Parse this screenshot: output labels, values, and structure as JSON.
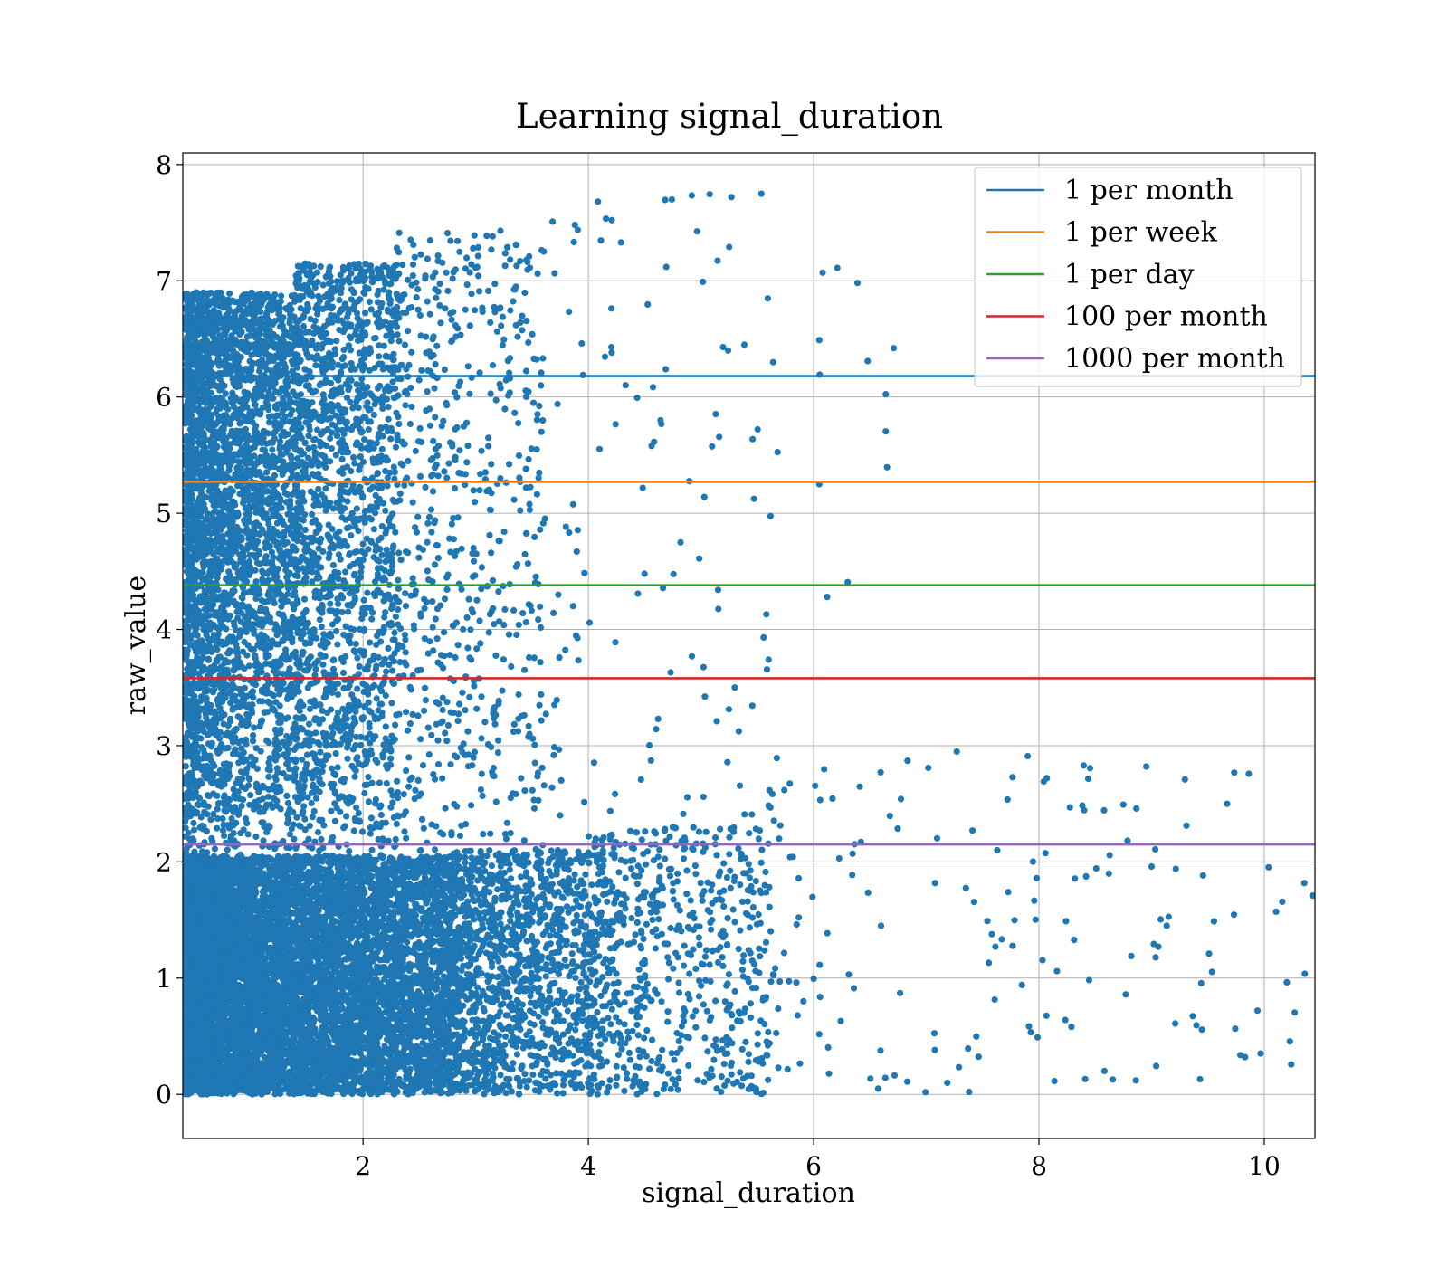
{
  "chart_data": {
    "type": "scatter",
    "title": "Learning signal_duration",
    "xlabel": "signal_duration",
    "ylabel": "raw_value",
    "xlim": [
      0.4,
      10.45
    ],
    "ylim": [
      -0.38,
      8.1
    ],
    "xticks": [
      2,
      4,
      6,
      8,
      10
    ],
    "yticks": [
      0,
      1,
      2,
      3,
      4,
      5,
      6,
      7,
      8
    ],
    "grid": true,
    "legend_position": "upper right",
    "point_color": "#1f77b4",
    "scatter_distribution": [
      {
        "x_range": [
          0.42,
          2.8
        ],
        "y_range": [
          0.0,
          2.05
        ],
        "count": 9000,
        "x_skew": 1.6,
        "y_skew": 1.0
      },
      {
        "x_range": [
          2.8,
          4.0
        ],
        "y_range": [
          0.0,
          2.1
        ],
        "count": 1300,
        "x_skew": 1.3,
        "y_skew": 1.0
      },
      {
        "x_range": [
          4.0,
          5.6
        ],
        "y_range": [
          0.0,
          2.3
        ],
        "count": 700,
        "x_skew": 1.4,
        "y_skew": 1.0
      },
      {
        "x_range": [
          5.6,
          10.4
        ],
        "y_range": [
          0.0,
          2.9
        ],
        "count": 160,
        "x_skew": 1.6,
        "y_skew": 1.0
      },
      {
        "x_range": [
          0.42,
          1.4
        ],
        "y_range": [
          2.0,
          6.9
        ],
        "count": 3600,
        "x_skew": 1.4,
        "y_skew": 0.7
      },
      {
        "x_range": [
          1.4,
          2.3
        ],
        "y_range": [
          2.0,
          7.15
        ],
        "count": 1700,
        "x_skew": 1.3,
        "y_skew": 0.8
      },
      {
        "x_range": [
          2.3,
          3.6
        ],
        "y_range": [
          2.0,
          7.45
        ],
        "count": 650,
        "x_skew": 1.3,
        "y_skew": 0.8
      },
      {
        "x_range": [
          3.6,
          5.6
        ],
        "y_range": [
          2.2,
          7.75
        ],
        "count": 110,
        "x_skew": 1.2,
        "y_skew": 0.9
      },
      {
        "x_range": [
          5.6,
          6.8
        ],
        "y_range": [
          4.0,
          7.2
        ],
        "count": 8,
        "x_skew": 1.0,
        "y_skew": 1.0
      }
    ],
    "scatter_points": [
      {
        "x": 5.27,
        "y": 7.72
      },
      {
        "x": 3.88,
        "y": 7.48
      },
      {
        "x": 3.22,
        "y": 7.43
      },
      {
        "x": 2.75,
        "y": 7.41
      },
      {
        "x": 4.29,
        "y": 7.33
      },
      {
        "x": 5.25,
        "y": 7.29
      },
      {
        "x": 6.21,
        "y": 7.11
      },
      {
        "x": 6.08,
        "y": 7.07
      },
      {
        "x": 6.71,
        "y": 6.42
      },
      {
        "x": 6.48,
        "y": 6.31
      },
      {
        "x": 5.64,
        "y": 6.3
      },
      {
        "x": 6.05,
        "y": 6.49
      },
      {
        "x": 6.05,
        "y": 5.25
      },
      {
        "x": 5.03,
        "y": 5.14
      },
      {
        "x": 6.12,
        "y": 4.28
      },
      {
        "x": 5.58,
        "y": 4.13
      },
      {
        "x": 5.6,
        "y": 3.74
      },
      {
        "x": 5.3,
        "y": 3.5
      },
      {
        "x": 5.14,
        "y": 3.21
      },
      {
        "x": 4.73,
        "y": 3.63
      },
      {
        "x": 7.27,
        "y": 2.95
      },
      {
        "x": 7.9,
        "y": 2.91
      },
      {
        "x": 8.07,
        "y": 2.72
      },
      {
        "x": 9.67,
        "y": 2.5
      },
      {
        "x": 10.43,
        "y": 1.71
      },
      {
        "x": 9.0,
        "y": 1.96
      },
      {
        "x": 8.24,
        "y": 1.49
      },
      {
        "x": 9.51,
        "y": 1.21
      },
      {
        "x": 9.06,
        "y": 1.27
      },
      {
        "x": 9.94,
        "y": 0.72
      },
      {
        "x": 9.83,
        "y": 0.32
      },
      {
        "x": 9.43,
        "y": 0.13
      },
      {
        "x": 9.21,
        "y": 0.61
      },
      {
        "x": 8.82,
        "y": 1.19
      },
      {
        "x": 8.77,
        "y": 0.86
      },
      {
        "x": 8.86,
        "y": 0.12
      },
      {
        "x": 8.16,
        "y": 1.06
      },
      {
        "x": 7.98,
        "y": 1.86
      },
      {
        "x": 7.63,
        "y": 2.1
      },
      {
        "x": 7.38,
        "y": 0.02
      },
      {
        "x": 7.41,
        "y": 2.27
      }
    ],
    "series": [
      {
        "name": "1 per month",
        "type": "hline",
        "y": 6.18,
        "color": "#1f77b4"
      },
      {
        "name": "1 per week",
        "type": "hline",
        "y": 5.27,
        "color": "#ff7f0e"
      },
      {
        "name": "1 per day",
        "type": "hline",
        "y": 4.38,
        "color": "#2ca02c"
      },
      {
        "name": "100 per month",
        "type": "hline",
        "y": 3.58,
        "color": "#d62728"
      },
      {
        "name": "1000 per month",
        "type": "hline",
        "y": 2.15,
        "color": "#9467bd"
      }
    ]
  }
}
